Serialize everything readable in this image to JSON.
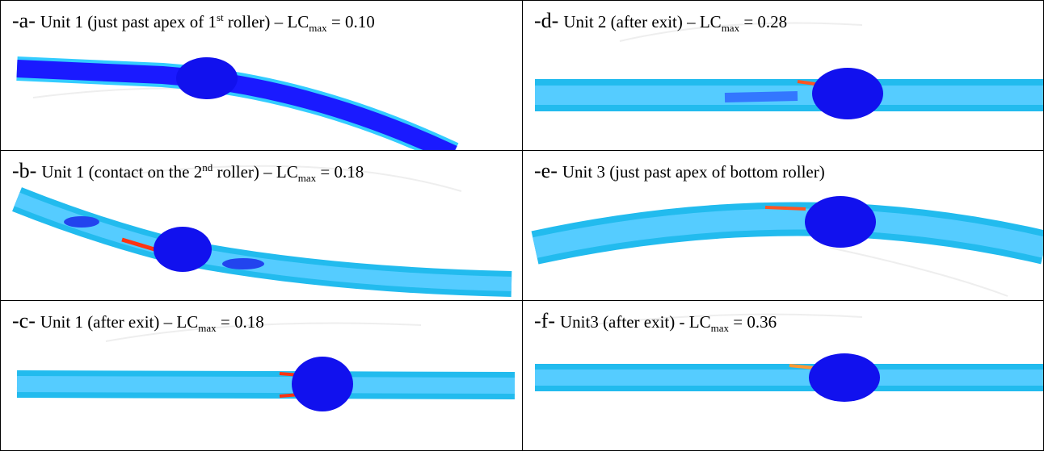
{
  "panels": [
    {
      "label": "-a-",
      "caption": [
        {
          "text": "Unit 1 (just past apex of 1"
        },
        {
          "sup": "st"
        },
        {
          "text": " roller) – LC"
        },
        {
          "sub": "max"
        },
        {
          "text": " = 0.10"
        }
      ]
    },
    {
      "label": "-d-",
      "caption": [
        {
          "text": "Unit 2 (after exit) – LC"
        },
        {
          "sub": "max"
        },
        {
          "text": " = 0.28"
        }
      ]
    },
    {
      "label": "-b-",
      "caption": [
        {
          "text": "Unit 1 (contact on the 2"
        },
        {
          "sup": "nd"
        },
        {
          "text": " roller) – LC"
        },
        {
          "sub": "max"
        },
        {
          "text": " = 0.18"
        }
      ]
    },
    {
      "label": "-e-",
      "caption": [
        {
          "text": "Unit 3 (just past apex of bottom roller)"
        }
      ]
    },
    {
      "label": "-c-",
      "caption": [
        {
          "text": "Unit 1 (after exit) – LC"
        },
        {
          "sub": "max"
        },
        {
          "text": " = 0.18"
        }
      ]
    },
    {
      "label": "-f-",
      "caption": [
        {
          "text": "Unit3 (after exit) - LC"
        },
        {
          "sub": "max"
        },
        {
          "text": " = 0.36"
        }
      ]
    }
  ]
}
